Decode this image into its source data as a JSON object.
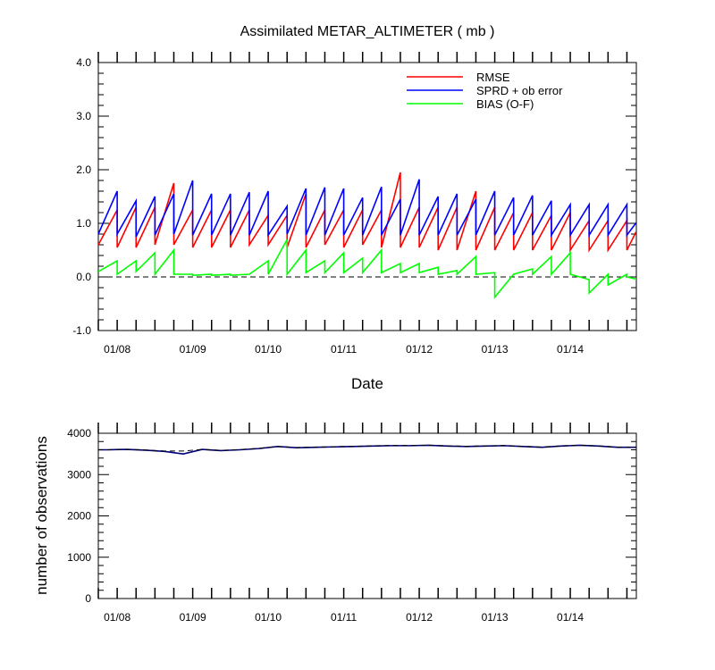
{
  "chart_data": [
    {
      "type": "line",
      "title": "Assimilated METAR_ALTIMETER ( mb )",
      "xlabel": "Date",
      "ylabel": "",
      "xlim": [
        "01/07 18Z",
        "01/14 21Z"
      ],
      "ylim": [
        -1.0,
        4.0
      ],
      "y_ticks": [
        "-1.0",
        "0.0",
        "1.0",
        "2.0",
        "3.0",
        "4.0"
      ],
      "x_ticks": [
        "01/08",
        "01/09",
        "01/10",
        "01/11",
        "01/12",
        "01/13",
        "01/14"
      ],
      "reference_line": 0.0,
      "legend": {
        "position": "top-right"
      },
      "x": [
        "01/07 18Z",
        "01/08 00Z",
        "01/08 06Z",
        "01/08 12Z",
        "01/08 18Z",
        "01/09 00Z",
        "01/09 06Z",
        "01/09 12Z",
        "01/09 18Z",
        "01/10 00Z",
        "01/10 06Z",
        "01/10 12Z",
        "01/10 18Z",
        "01/11 00Z",
        "01/11 06Z",
        "01/11 12Z",
        "01/11 18Z",
        "01/12 00Z",
        "01/12 06Z",
        "01/12 12Z",
        "01/12 18Z",
        "01/13 00Z",
        "01/13 06Z",
        "01/13 12Z",
        "01/13 18Z",
        "01/14 00Z",
        "01/14 06Z",
        "01/14 12Z",
        "01/14 18Z"
      ],
      "series": [
        {
          "name": "RMSE",
          "color": "#ff0000",
          "prior": [
            0.6,
            0.55,
            0.55,
            0.6,
            0.6,
            0.55,
            0.55,
            0.55,
            0.6,
            0.6,
            0.55,
            0.55,
            0.6,
            0.55,
            0.6,
            0.55,
            0.55,
            0.55,
            0.5,
            0.5,
            0.5,
            0.5,
            0.5,
            0.5,
            0.5,
            0.5,
            0.5,
            0.5,
            0.5
          ],
          "posterior": [
            1.25,
            1.3,
            1.3,
            1.75,
            1.25,
            1.25,
            1.25,
            1.25,
            1.15,
            1.15,
            1.55,
            1.25,
            1.25,
            1.25,
            1.25,
            1.95,
            1.3,
            1.3,
            1.3,
            1.6,
            1.3,
            1.2,
            1.2,
            1.15,
            1.2,
            1.05,
            1.05,
            1.05,
            1.2
          ]
        },
        {
          "name": "SPRD + ob error",
          "color": "#0000ff",
          "prior": [
            0.8,
            0.8,
            0.75,
            0.78,
            0.8,
            0.78,
            0.78,
            0.78,
            0.78,
            0.78,
            0.8,
            0.78,
            0.78,
            0.78,
            0.78,
            0.78,
            0.78,
            0.78,
            0.78,
            0.78,
            0.78,
            0.78,
            0.78,
            0.78,
            0.78,
            0.78,
            0.78,
            0.78,
            0.78
          ],
          "posterior": [
            1.6,
            1.42,
            1.5,
            1.55,
            1.8,
            1.55,
            1.55,
            1.58,
            1.6,
            1.32,
            1.65,
            1.67,
            1.65,
            1.48,
            1.68,
            1.45,
            1.82,
            1.5,
            1.55,
            1.45,
            1.6,
            1.48,
            1.52,
            1.42,
            1.35,
            1.35,
            1.35,
            1.35,
            1.25
          ]
        },
        {
          "name": "BIAS (O-F)",
          "color": "#00ff00",
          "prior": [
            0.1,
            0.05,
            0.1,
            0.05,
            0.05,
            0.03,
            0.03,
            0.03,
            0.05,
            0.05,
            0.05,
            0.08,
            0.08,
            0.08,
            0.08,
            0.08,
            0.08,
            0.08,
            0.05,
            0.05,
            0.05,
            -0.38,
            0.05,
            0.05,
            0.05,
            0.05,
            -0.3,
            -0.15,
            0.0
          ],
          "posterior": [
            0.3,
            0.3,
            0.45,
            0.5,
            0.05,
            0.05,
            0.05,
            0.05,
            0.3,
            0.7,
            0.5,
            0.3,
            0.45,
            0.35,
            0.5,
            0.25,
            0.25,
            0.18,
            0.12,
            0.38,
            0.08,
            0.05,
            0.15,
            0.38,
            0.45,
            -0.05,
            0.05,
            0.05,
            -0.08
          ]
        }
      ]
    },
    {
      "type": "line",
      "title": "",
      "xlabel": "",
      "ylabel": "number of observations",
      "xlim": [
        "01/07 18Z",
        "01/14 21Z"
      ],
      "ylim": [
        0,
        4000
      ],
      "y_ticks": [
        "0",
        "1000",
        "2000",
        "3000",
        "4000"
      ],
      "x_ticks": [
        "01/08",
        "01/09",
        "01/10",
        "01/11",
        "01/12",
        "01/13",
        "01/14"
      ],
      "series": [
        {
          "name": "",
          "color": "#000080",
          "style": "solid",
          "x": [
            "01/07 18Z",
            "01/08 00Z",
            "01/08 06Z",
            "01/08 12Z",
            "01/08 18Z",
            "01/09 00Z",
            "01/09 06Z",
            "01/09 12Z",
            "01/09 18Z",
            "01/10 00Z",
            "01/10 06Z",
            "01/10 12Z",
            "01/10 18Z",
            "01/11 00Z",
            "01/11 06Z",
            "01/11 12Z",
            "01/11 18Z",
            "01/12 00Z",
            "01/12 06Z",
            "01/12 12Z",
            "01/12 18Z",
            "01/13 00Z",
            "01/13 06Z",
            "01/13 12Z",
            "01/13 18Z",
            "01/14 00Z",
            "01/14 06Z",
            "01/14 12Z",
            "01/14 18Z"
          ],
          "values": [
            3600,
            3610,
            3590,
            3560,
            3500,
            3610,
            3580,
            3600,
            3630,
            3680,
            3650,
            3660,
            3670,
            3680,
            3690,
            3700,
            3700,
            3710,
            3690,
            3680,
            3690,
            3700,
            3680,
            3660,
            3690,
            3710,
            3690,
            3660,
            3660
          ]
        },
        {
          "name": "",
          "color": "#000000",
          "style": "dashed",
          "x": [
            "01/07 18Z",
            "01/08 00Z",
            "01/08 06Z",
            "01/08 12Z",
            "01/08 18Z",
            "01/09 00Z",
            "01/09 06Z",
            "01/09 12Z",
            "01/09 18Z",
            "01/10 00Z",
            "01/10 06Z",
            "01/10 12Z",
            "01/10 18Z",
            "01/11 00Z",
            "01/11 06Z",
            "01/11 12Z",
            "01/11 18Z",
            "01/12 00Z",
            "01/12 06Z",
            "01/12 12Z",
            "01/12 18Z",
            "01/13 00Z",
            "01/13 06Z",
            "01/13 12Z",
            "01/13 18Z",
            "01/14 00Z",
            "01/14 06Z",
            "01/14 12Z",
            "01/14 18Z"
          ],
          "values": [
            3600,
            3610,
            3595,
            3570,
            3570,
            3610,
            3585,
            3605,
            3635,
            3680,
            3655,
            3665,
            3675,
            3685,
            3695,
            3705,
            3705,
            3710,
            3695,
            3685,
            3695,
            3705,
            3685,
            3665,
            3695,
            3710,
            3695,
            3665,
            3665
          ]
        }
      ]
    }
  ]
}
